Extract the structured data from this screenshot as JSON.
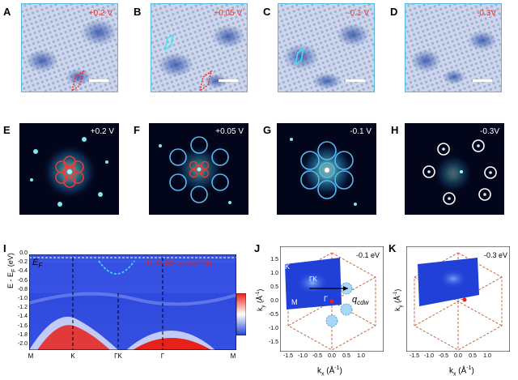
{
  "panels": {
    "A": "A",
    "B": "B",
    "C": "C",
    "D": "D",
    "E": "E",
    "F": "F",
    "G": "G",
    "H": "H",
    "I": "I",
    "J": "J",
    "K": "K"
  },
  "stm": [
    {
      "bias": "+0.2 V"
    },
    {
      "bias": "+0.05 V"
    },
    {
      "bias": "-0.1 V"
    },
    {
      "bias": "-0.3V"
    }
  ],
  "fft": [
    {
      "bias": "+0.2 V"
    },
    {
      "bias": "+0.05 V"
    },
    {
      "bias": "-0.1 V"
    },
    {
      "bias": "-0.3V"
    }
  ],
  "arpes": {
    "ef_label": "E",
    "ef_sub": "F",
    "sample_label": "1L-MoS2 on Au(111)",
    "ylabel": "E - E",
    "ylabel_sub": "F",
    "ylabel_unit": "(eV)",
    "yticks": [
      "0.0",
      "-0.2",
      "-0.4",
      "-0.6",
      "-0.8",
      "-1.0",
      "-1.2",
      "-1.4",
      "-1.6",
      "-1.8",
      "-2.0"
    ],
    "xticks": [
      "M",
      "K",
      "ΓK",
      "Γ",
      "M"
    ]
  },
  "fermi_j": {
    "energy": "-0.1 eV",
    "ylabel_k": "k",
    "ylabel_sub": "y",
    "ylabel_unit": "(Å",
    "ylabel_sup": "-1",
    "ylabel_close": ")",
    "xlabel_k": "k",
    "xlabel_sub": "x",
    "xlabel_unit": "(Å",
    "xlabel_sup": "-1",
    "xlabel_close": ")",
    "xticks": [
      "-1.5",
      "-1.0",
      "-0.5",
      "0.0",
      "0.5",
      "1.0"
    ],
    "yticks": [
      "1.5",
      "1.0",
      "0.5",
      "0.0",
      "-0.5",
      "-1.0",
      "-1.5"
    ],
    "point_k": "K",
    "point_gk": "ΓK",
    "point_m": "M",
    "point_g": "Γ",
    "q_label": "q",
    "q_sub": "cdw"
  },
  "fermi_k": {
    "energy": "-0.3 eV",
    "ylabel_k": "k",
    "ylabel_sub": "y",
    "ylabel_unit": "(Å",
    "ylabel_sup": "-1",
    "ylabel_close": ")",
    "xlabel_k": "k",
    "xlabel_sub": "x",
    "xlabel_unit": "(Å",
    "xlabel_sup": "-1",
    "xlabel_close": ")",
    "xticks": [
      "-1.5",
      "-1.0",
      "-0.5",
      "0.0",
      "0.5",
      "1.0"
    ]
  },
  "colors": {
    "frame": "#57b8dc",
    "bias_red": "#e8362c",
    "fft_bg": "#03061a",
    "arpes_blue": "#1f3fd6",
    "arpes_red": "#e8211a",
    "hexagon": "#b85a3a"
  }
}
